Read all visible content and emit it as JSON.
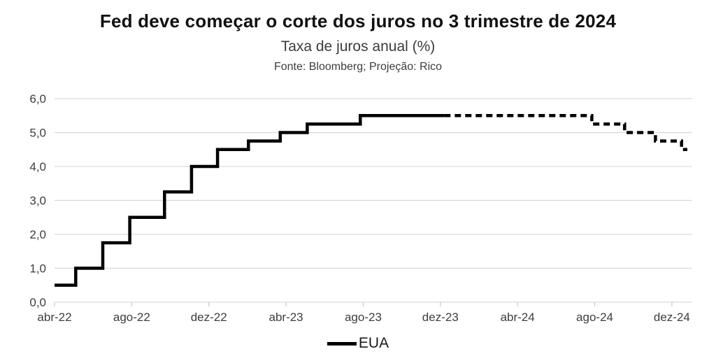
{
  "header": {
    "title": "Fed deve começar o corte dos juros no 3 trimestre de 2024",
    "subtitle": "Taxa de juros anual (%)",
    "source": "Fonte: Bloomberg; Projeção: Rico"
  },
  "legend": {
    "items": [
      {
        "label": "EUA"
      }
    ]
  },
  "chart_data": {
    "type": "line",
    "subtype": "step",
    "title": "Fed deve começar o corte dos juros no 3 trimestre de 2024",
    "subtitle": "Taxa de juros anual (%)",
    "source": "Fonte: Bloomberg; Projeção: Rico",
    "ylabel": "Taxa de juros anual (%)",
    "xlabel": "",
    "ylim": [
      0,
      6
    ],
    "ytick_values": [
      0,
      1,
      2,
      3,
      4,
      5,
      6
    ],
    "ytick_labels": [
      "0,0",
      "1,0",
      "2,0",
      "3,0",
      "4,0",
      "5,0",
      "6,0"
    ],
    "xtick_months": [
      0,
      4,
      8,
      12,
      16,
      20,
      24,
      28,
      32
    ],
    "xtick_labels": [
      "abr-22",
      "ago-22",
      "dez-22",
      "abr-23",
      "ago-23",
      "dez-23",
      "abr-24",
      "ago-24",
      "dez-24"
    ],
    "x_month_zero": "abr-22",
    "grid": "horizontal",
    "legend_position": "bottom-center",
    "line_color": "#000000",
    "grid_color": "#d9d9d9",
    "axis_text_color": "#3d3d3d",
    "series": [
      {
        "name": "EUA",
        "segment": "histórico",
        "line_style": "solid",
        "color": "#000000",
        "end_m": 20.2,
        "points": [
          {
            "date": "abr-22",
            "m": 0,
            "rate": 0.5
          },
          {
            "date": "mai-22",
            "m": 1.1,
            "rate": 1.0
          },
          {
            "date": "jun-22",
            "m": 2.5,
            "rate": 1.75
          },
          {
            "date": "jul-22",
            "m": 3.9,
            "rate": 2.5
          },
          {
            "date": "set-22",
            "m": 5.7,
            "rate": 3.25
          },
          {
            "date": "nov-22",
            "m": 7.1,
            "rate": 4.0
          },
          {
            "date": "dez-22",
            "m": 8.45,
            "rate": 4.5
          },
          {
            "date": "fev-23",
            "m": 10.05,
            "rate": 4.75
          },
          {
            "date": "mar-23",
            "m": 11.7,
            "rate": 5.0
          },
          {
            "date": "mai-23",
            "m": 13.1,
            "rate": 5.25
          },
          {
            "date": "jul-23",
            "m": 15.85,
            "rate": 5.5
          }
        ]
      },
      {
        "name": "EUA",
        "segment": "projeção",
        "line_style": "dashed",
        "color": "#000000",
        "end_m": 32.8,
        "points": [
          {
            "date": "dez-23",
            "m": 20.2,
            "rate": 5.5
          },
          {
            "date": "ago-24",
            "m": 27.85,
            "rate": 5.25
          },
          {
            "date": "set-24",
            "m": 29.55,
            "rate": 5.0
          },
          {
            "date": "nov-24",
            "m": 31.15,
            "rate": 4.75
          },
          {
            "date": "dez-24",
            "m": 32.5,
            "rate": 4.5
          }
        ]
      }
    ]
  }
}
